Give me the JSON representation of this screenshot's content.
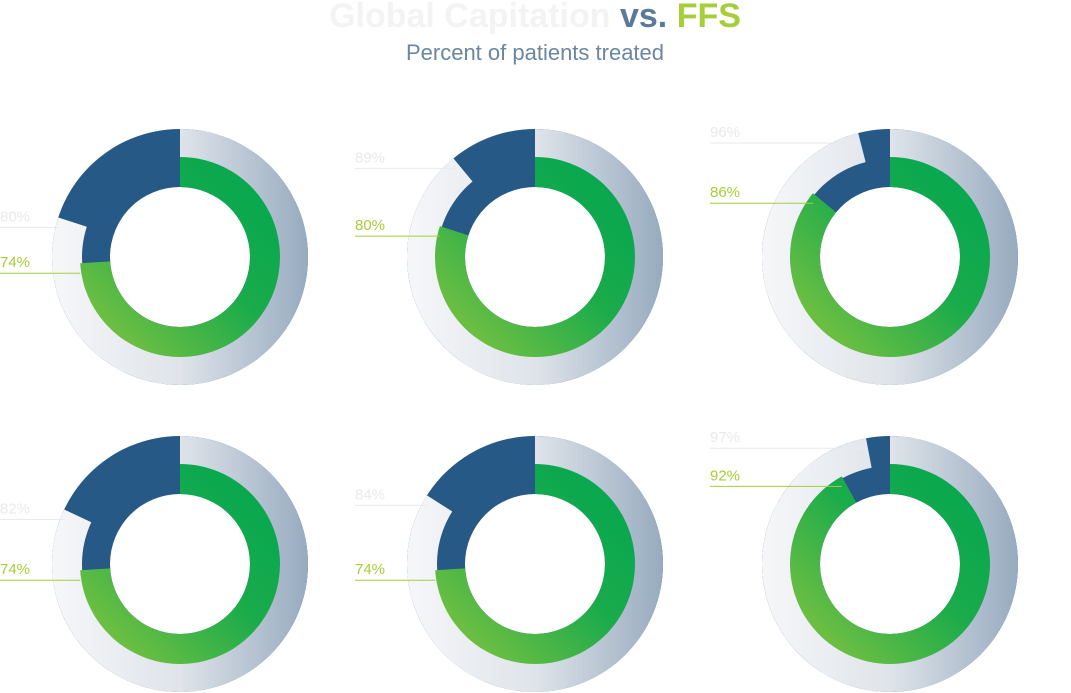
{
  "chart_data": {
    "type": "nested-donut",
    "title_separator": "vs.",
    "subtitle": "Percent of patients treated",
    "remainder_color": "#275987",
    "series": [
      {
        "name": "Global Capitation",
        "color": "#eeeff1",
        "values": [
          80,
          89,
          96,
          82,
          84,
          97
        ],
        "value_labels": [
          "80%",
          "89%",
          "96%",
          "82%",
          "84%",
          "97%"
        ]
      },
      {
        "name": "FFS",
        "color": "#a6ce39",
        "values": [
          74,
          80,
          86,
          74,
          74,
          92
        ],
        "value_labels": [
          "74%",
          "80%",
          "86%",
          "74%",
          "74%",
          "92%"
        ]
      }
    ]
  }
}
